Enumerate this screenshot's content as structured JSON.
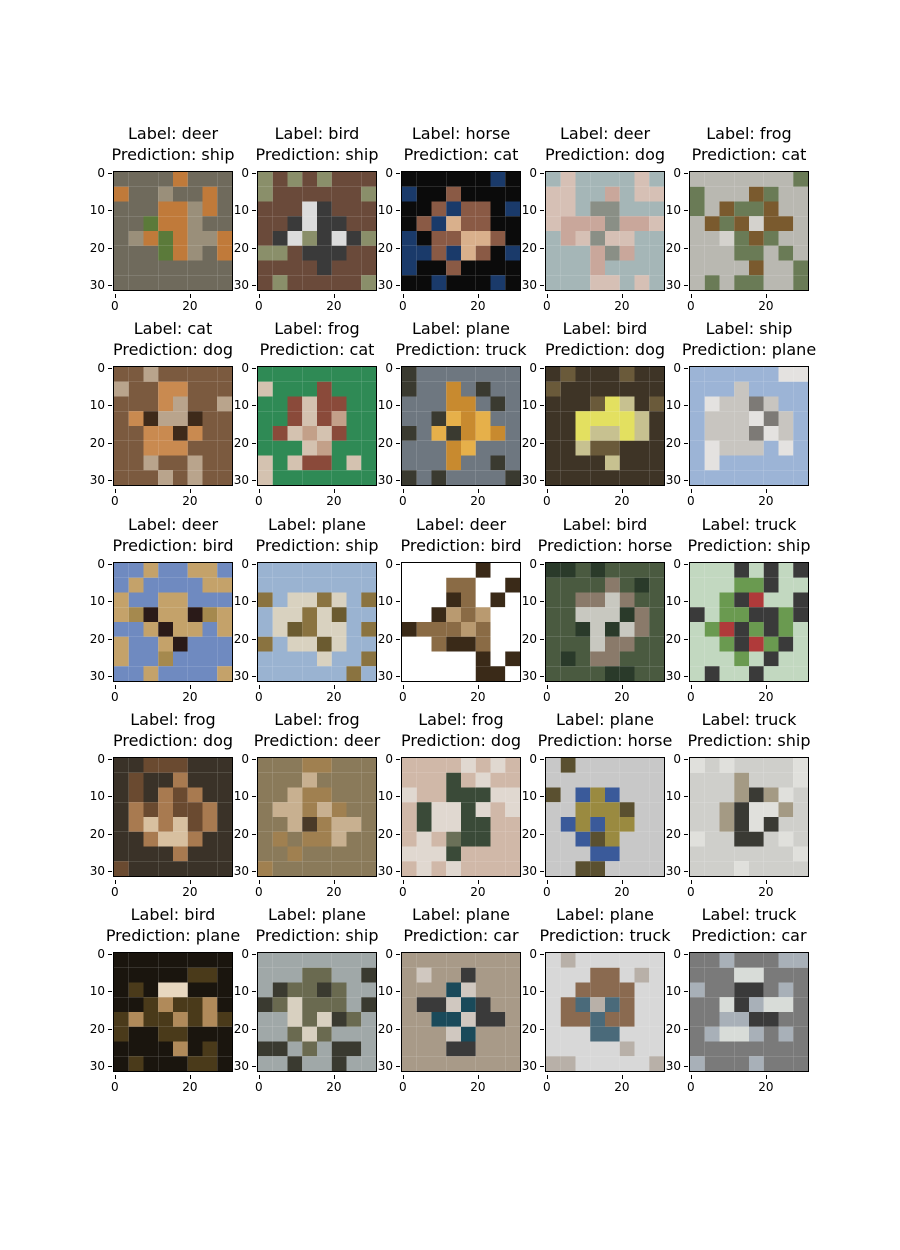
{
  "figure": {
    "ytick_labels": [
      "0",
      "10",
      "20",
      "30"
    ],
    "xtick_labels": [
      "0",
      "20"
    ],
    "label_prefix": "Label: ",
    "prediction_prefix": "Prediction: "
  },
  "panels": [
    {
      "label": "deer",
      "prediction": "ship",
      "colors": [
        "#6f6a5c",
        "#9a8f7a",
        "#5b7a3a",
        "#c07a3a"
      ]
    },
    {
      "label": "bird",
      "prediction": "ship",
      "colors": [
        "#6a4a3a",
        "#3a3a3a",
        "#dcdcdc",
        "#8a8f6a"
      ]
    },
    {
      "label": "horse",
      "prediction": "cat",
      "colors": [
        "#0b0b0b",
        "#8a5a45",
        "#d9b08c",
        "#1a3a6a"
      ]
    },
    {
      "label": "deer",
      "prediction": "dog",
      "colors": [
        "#a5b6b7",
        "#c9a79b",
        "#8a8f86",
        "#d6c0b5"
      ]
    },
    {
      "label": "frog",
      "prediction": "cat",
      "colors": [
        "#b9b8b1",
        "#7a5a2e",
        "#d4d2cd",
        "#6a7b56"
      ]
    },
    {
      "label": "cat",
      "prediction": "dog",
      "colors": [
        "#7b5a3f",
        "#c98a50",
        "#3e2a1a",
        "#b9a48c"
      ]
    },
    {
      "label": "frog",
      "prediction": "cat",
      "colors": [
        "#2f8a55",
        "#8a4a3a",
        "#c3a089",
        "#d4c2b0"
      ]
    },
    {
      "label": "plane",
      "prediction": "truck",
      "colors": [
        "#6e7780",
        "#c88a2f",
        "#e6b04a",
        "#3a3a30"
      ]
    },
    {
      "label": "bird",
      "prediction": "dog",
      "colors": [
        "#3e3426",
        "#c7c190",
        "#e3e060",
        "#6a5a3a"
      ]
    },
    {
      "label": "ship",
      "prediction": "plane",
      "colors": [
        "#9cb4d6",
        "#c8c5c0",
        "#7d7a76",
        "#e4e2e0"
      ]
    },
    {
      "label": "deer",
      "prediction": "bird",
      "colors": [
        "#6f8ac0",
        "#a5894e",
        "#2a1a18",
        "#c4a26a"
      ]
    },
    {
      "label": "plane",
      "prediction": "ship",
      "colors": [
        "#9ab3d1",
        "#d9d2c0",
        "#6b5b30",
        "#8a7340"
      ]
    },
    {
      "label": "deer",
      "prediction": "bird",
      "colors": [
        "#ffffff",
        "#8a6b45",
        "#b99a70",
        "#3a2a18"
      ]
    },
    {
      "label": "bird",
      "prediction": "horse",
      "colors": [
        "#4a5a40",
        "#8a7a6a",
        "#c8c8c0",
        "#2a3a2a"
      ]
    },
    {
      "label": "truck",
      "prediction": "ship",
      "colors": [
        "#c2d8c0",
        "#6a9a50",
        "#b03a3a",
        "#3a3a3a"
      ]
    },
    {
      "label": "frog",
      "prediction": "dog",
      "colors": [
        "#3a3228",
        "#a87a50",
        "#d8c0a0",
        "#6a4a30"
      ]
    },
    {
      "label": "frog",
      "prediction": "deer",
      "colors": [
        "#8a7a5a",
        "#c8b090",
        "#4a3a28",
        "#a08050"
      ]
    },
    {
      "label": "frog",
      "prediction": "dog",
      "colors": [
        "#d0b8a8",
        "#3a4a38",
        "#6a7058",
        "#e0d8d0"
      ]
    },
    {
      "label": "plane",
      "prediction": "horse",
      "colors": [
        "#c8c8c8",
        "#3a5a9a",
        "#9a8a40",
        "#5a5030"
      ]
    },
    {
      "label": "truck",
      "prediction": "ship",
      "colors": [
        "#cfcfcb",
        "#a49a84",
        "#3a3a34",
        "#e0e0dc"
      ]
    },
    {
      "label": "bird",
      "prediction": "plane",
      "colors": [
        "#1a150e",
        "#b08a5a",
        "#e8d8c0",
        "#4a3a1a"
      ]
    },
    {
      "label": "plane",
      "prediction": "ship",
      "colors": [
        "#a0a8a8",
        "#6a6a50",
        "#d8d0c0",
        "#3a3a30"
      ]
    },
    {
      "label": "plane",
      "prediction": "car",
      "colors": [
        "#a89a88",
        "#3a3a3a",
        "#1a4a5a",
        "#d0c8c0"
      ]
    },
    {
      "label": "plane",
      "prediction": "truck",
      "colors": [
        "#d8d8d8",
        "#8a6a50",
        "#4a6a7a",
        "#b8b0a8"
      ]
    },
    {
      "label": "truck",
      "prediction": "car",
      "colors": [
        "#7a7a7a",
        "#d8dcd8",
        "#3a3a3a",
        "#a8b0b8"
      ]
    }
  ]
}
